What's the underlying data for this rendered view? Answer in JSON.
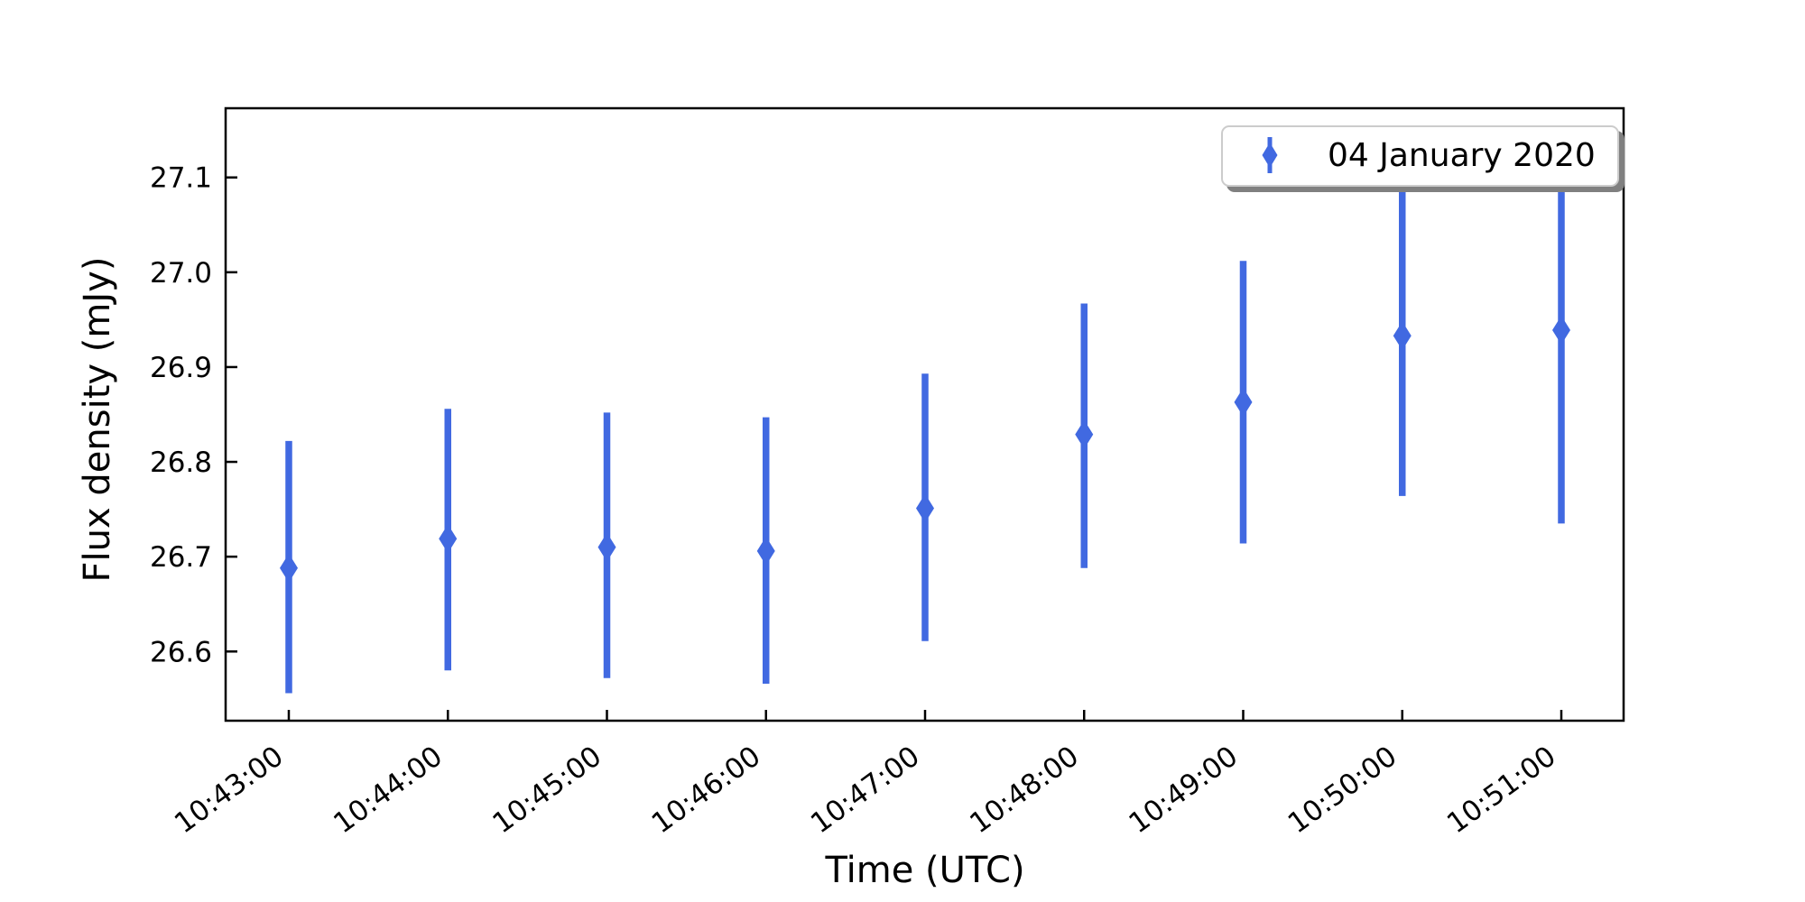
{
  "chart_data": {
    "type": "scatter",
    "subtype": "errorbar",
    "title": "",
    "xlabel": "Time (UTC)",
    "ylabel": "Flux density (mJy)",
    "x_tick_labels": [
      "10:43:00",
      "10:44:00",
      "10:45:00",
      "10:46:00",
      "10:47:00",
      "10:48:00",
      "10:49:00",
      "10:50:00",
      "10:51:00"
    ],
    "y_ticks": [
      26.6,
      26.7,
      26.8,
      26.9,
      27.0,
      27.1
    ],
    "y_tick_labels": [
      "26.6",
      "26.7",
      "26.8",
      "26.9",
      "27.0",
      "27.1"
    ],
    "ylim": [
      26.527,
      27.173
    ],
    "grid": false,
    "legend": {
      "label": "04 January 2020",
      "location": "upper right"
    },
    "series": [
      {
        "name": "04 January 2020",
        "marker": "thin-diamond",
        "color": "#4169E1",
        "x": [
          "10:43:00",
          "10:44:00",
          "10:45:00",
          "10:46:00",
          "10:47:00",
          "10:48:00",
          "10:49:00",
          "10:50:00",
          "10:51:00"
        ],
        "y": [
          26.688,
          26.719,
          26.71,
          26.706,
          26.751,
          26.829,
          26.863,
          26.933,
          26.939
        ],
        "y_lower": [
          26.556,
          26.58,
          26.572,
          26.566,
          26.611,
          26.688,
          26.714,
          26.764,
          26.735
        ],
        "y_upper": [
          26.822,
          26.856,
          26.852,
          26.847,
          26.893,
          26.967,
          27.012,
          27.102,
          27.143
        ]
      }
    ]
  },
  "colors": {
    "marker": "#4169E1",
    "axis": "#000000",
    "text": "#000000",
    "background": "#ffffff",
    "legend_border": "#cccccc",
    "legend_shadow": "#808080"
  }
}
